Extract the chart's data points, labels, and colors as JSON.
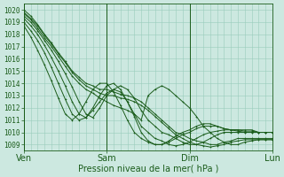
{
  "title": "",
  "xlabel": "Pression niveau de la mer( hPa )",
  "ylabel": "",
  "bg_color": "#cce8e0",
  "grid_color": "#99ccbb",
  "line_color": "#1a5c1a",
  "ylim": [
    1008.5,
    1020.5
  ],
  "xlim": [
    0,
    72
  ],
  "xtick_positions": [
    0,
    24,
    48,
    72
  ],
  "xtick_labels": [
    "Ven",
    "Sam",
    "Dim",
    "Lun"
  ],
  "ytick_positions": [
    1009,
    1010,
    1011,
    1012,
    1013,
    1014,
    1015,
    1016,
    1017,
    1018,
    1019,
    1020
  ],
  "series": [
    {
      "x": [
        0,
        2,
        4,
        6,
        8,
        10,
        12,
        14,
        16,
        18,
        20,
        22,
        24,
        26,
        28,
        30,
        32,
        34,
        36,
        38,
        40,
        42,
        44,
        46,
        48,
        50,
        52,
        54,
        56,
        58,
        60,
        62,
        64,
        66,
        68,
        70,
        72
      ],
      "y": [
        1020.0,
        1019.5,
        1018.8,
        1018.0,
        1017.3,
        1016.5,
        1015.8,
        1015.0,
        1014.5,
        1014.0,
        1013.8,
        1013.5,
        1013.5,
        1013.3,
        1013.1,
        1013.0,
        1012.8,
        1012.5,
        1012.0,
        1011.5,
        1011.0,
        1010.5,
        1010.0,
        1009.8,
        1009.5,
        1009.3,
        1009.2,
        1009.0,
        1009.0,
        1009.2,
        1009.3,
        1009.5,
        1009.5,
        1009.5,
        1009.5,
        1009.5,
        1009.5
      ]
    },
    {
      "x": [
        0,
        2,
        4,
        6,
        8,
        10,
        12,
        14,
        16,
        18,
        20,
        22,
        24,
        26,
        28,
        30,
        32,
        34,
        36,
        38,
        40,
        42,
        44,
        46,
        48,
        50,
        52,
        54,
        56,
        58,
        60,
        62,
        64,
        66,
        68,
        70,
        72
      ],
      "y": [
        1019.8,
        1019.3,
        1018.7,
        1017.9,
        1017.2,
        1016.4,
        1015.7,
        1014.9,
        1014.3,
        1013.8,
        1013.5,
        1013.2,
        1013.0,
        1013.0,
        1012.8,
        1012.7,
        1012.5,
        1012.2,
        1011.8,
        1011.3,
        1010.8,
        1010.3,
        1009.8,
        1009.5,
        1009.2,
        1009.0,
        1008.9,
        1008.8,
        1008.9,
        1009.0,
        1009.2,
        1009.3,
        1009.4,
        1009.4,
        1009.4,
        1009.4,
        1009.4
      ]
    },
    {
      "x": [
        0,
        2,
        4,
        6,
        8,
        10,
        12,
        14,
        16,
        18,
        20,
        22,
        24,
        26,
        28,
        30,
        32,
        34,
        36,
        38,
        40,
        42,
        44,
        46,
        48,
        50,
        52,
        54,
        56,
        58,
        60,
        62,
        64,
        66,
        68,
        70,
        72
      ],
      "y": [
        1019.7,
        1019.2,
        1018.5,
        1017.7,
        1017.0,
        1016.2,
        1015.4,
        1014.6,
        1014.0,
        1013.5,
        1013.2,
        1012.8,
        1012.5,
        1012.2,
        1012.0,
        1011.8,
        1011.5,
        1011.0,
        1013.0,
        1013.5,
        1013.8,
        1013.5,
        1013.0,
        1012.5,
        1012.0,
        1011.3,
        1010.5,
        1010.0,
        1009.5,
        1009.2,
        1009.0,
        1009.0,
        1009.2,
        1009.3,
        1009.4,
        1009.4,
        1009.4
      ]
    },
    {
      "x": [
        0,
        2,
        4,
        6,
        8,
        10,
        12,
        14,
        16,
        18,
        20,
        22,
        24,
        26,
        28,
        30,
        32,
        34,
        36,
        38,
        40,
        42,
        44,
        46,
        48,
        50,
        52,
        54,
        56,
        58,
        60,
        62,
        64,
        66,
        68,
        70,
        72
      ],
      "y": [
        1019.5,
        1019.0,
        1018.3,
        1017.5,
        1016.7,
        1015.8,
        1014.8,
        1013.7,
        1012.5,
        1011.5,
        1011.2,
        1012.0,
        1013.0,
        1013.5,
        1013.8,
        1013.5,
        1012.8,
        1011.8,
        1011.0,
        1010.5,
        1010.0,
        1009.8,
        1009.5,
        1009.2,
        1009.0,
        1009.0,
        1009.2,
        1009.5,
        1009.8,
        1010.0,
        1010.0,
        1010.0,
        1010.0,
        1010.0,
        1010.0,
        1010.0,
        1010.0
      ]
    },
    {
      "x": [
        0,
        2,
        4,
        6,
        8,
        10,
        12,
        14,
        16,
        18,
        20,
        22,
        24,
        26,
        28,
        30,
        32,
        34,
        36,
        38,
        40,
        42,
        44,
        46,
        48,
        50,
        52,
        54,
        56,
        58,
        60,
        62,
        64,
        66,
        68,
        70,
        72
      ],
      "y": [
        1019.3,
        1018.7,
        1018.0,
        1017.1,
        1016.1,
        1015.0,
        1013.8,
        1012.5,
        1011.5,
        1011.2,
        1011.8,
        1012.5,
        1013.2,
        1013.5,
        1013.3,
        1012.5,
        1011.5,
        1010.5,
        1010.0,
        1009.5,
        1009.3,
        1009.0,
        1008.9,
        1009.0,
        1009.2,
        1009.5,
        1009.8,
        1010.0,
        1010.1,
        1010.2,
        1010.2,
        1010.2,
        1010.2,
        1010.2,
        1010.0,
        1010.0,
        1010.0
      ]
    },
    {
      "x": [
        0,
        2,
        4,
        6,
        8,
        10,
        12,
        14,
        16,
        18,
        20,
        22,
        24,
        26,
        28,
        30,
        32,
        34,
        36,
        38,
        40,
        42,
        44,
        46,
        48,
        50,
        52,
        54,
        56,
        58,
        60,
        62,
        64,
        66,
        68,
        70,
        72
      ],
      "y": [
        1019.0,
        1018.3,
        1017.5,
        1016.5,
        1015.3,
        1014.0,
        1012.7,
        1011.5,
        1011.0,
        1011.2,
        1012.0,
        1013.0,
        1013.8,
        1014.0,
        1013.5,
        1012.5,
        1011.3,
        1010.0,
        1009.3,
        1009.0,
        1009.0,
        1009.2,
        1009.5,
        1009.8,
        1010.0,
        1010.3,
        1010.5,
        1010.5,
        1010.5,
        1010.3,
        1010.2,
        1010.2,
        1010.1,
        1010.1,
        1010.0,
        1010.0,
        1010.0
      ]
    },
    {
      "x": [
        0,
        2,
        4,
        6,
        8,
        10,
        12,
        14,
        16,
        18,
        20,
        22,
        24,
        26,
        28,
        30,
        32,
        34,
        36,
        38,
        40,
        42,
        44,
        46,
        48,
        50,
        52,
        54,
        56,
        58,
        60,
        62,
        64,
        66,
        68,
        70,
        72
      ],
      "y": [
        1018.7,
        1017.8,
        1016.7,
        1015.5,
        1014.2,
        1012.8,
        1011.5,
        1011.0,
        1011.5,
        1012.5,
        1013.5,
        1014.0,
        1014.0,
        1013.3,
        1012.2,
        1011.0,
        1010.0,
        1009.5,
        1009.2,
        1009.0,
        1009.0,
        1009.3,
        1009.7,
        1010.0,
        1010.2,
        1010.5,
        1010.7,
        1010.7,
        1010.5,
        1010.3,
        1010.2,
        1010.1,
        1010.0,
        1010.0,
        1010.0,
        1010.0,
        1010.0
      ]
    }
  ]
}
